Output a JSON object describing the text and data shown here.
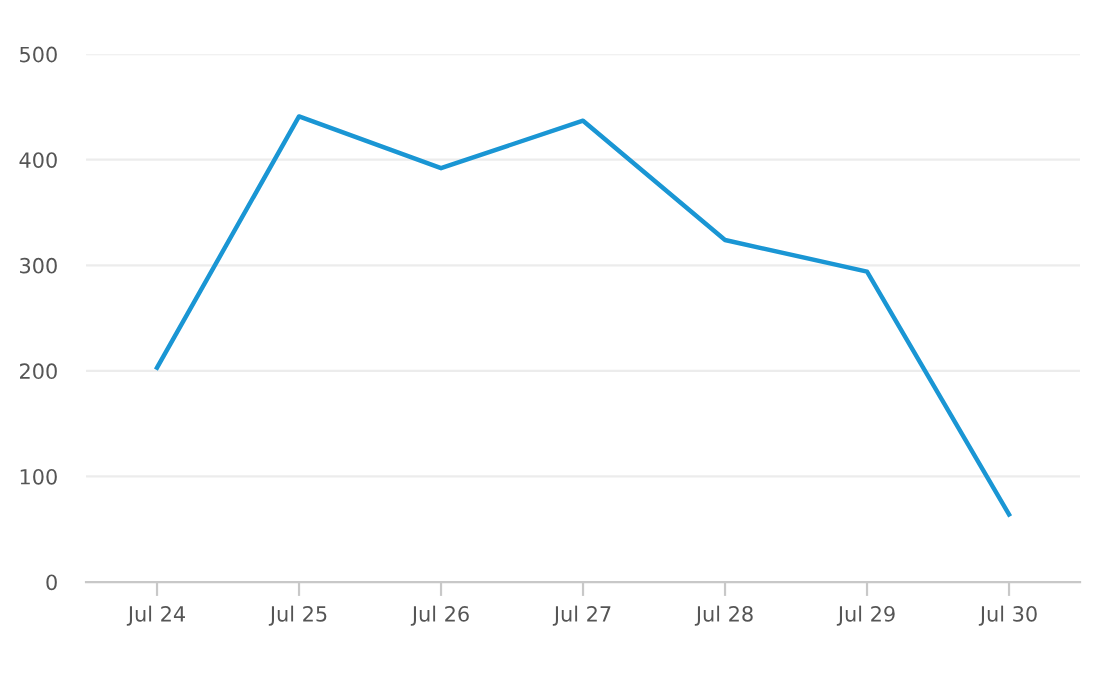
{
  "chart_data": {
    "type": "line",
    "categories": [
      "Jul 24",
      "Jul 25",
      "Jul 26",
      "Jul 27",
      "Jul 28",
      "Jul 29",
      "Jul 30"
    ],
    "series": [
      {
        "color": "#1a96d4",
        "values": [
          203,
          441,
          392,
          437,
          324,
          294,
          64
        ]
      }
    ],
    "ylim": [
      0,
      500
    ],
    "yticks": [
      0,
      100,
      200,
      300,
      400,
      500
    ],
    "grid": "y",
    "marker": "none",
    "line_style": "solid"
  }
}
